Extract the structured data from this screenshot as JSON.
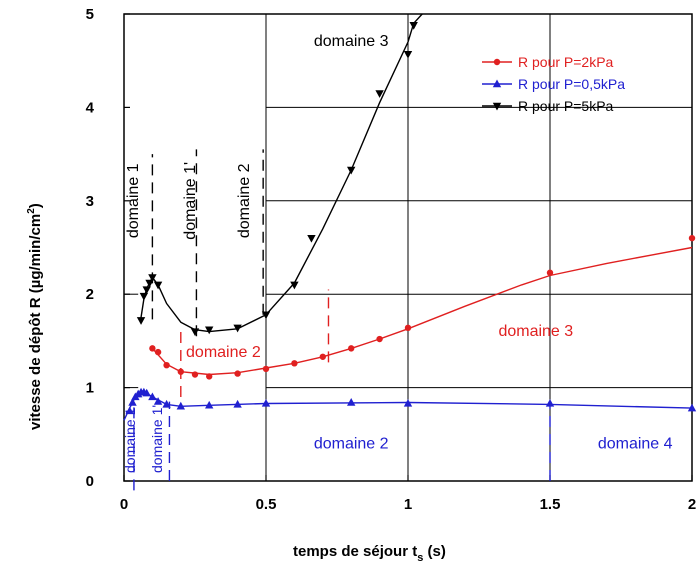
{
  "chart_data": {
    "type": "line",
    "xlabel": "temps de séjour t",
    "xlabel_sub": "s",
    "xlabel_unit": "(s)",
    "ylabel": "vitesse de dépôt R (µg/min/cm",
    "ylabel_sup": "2",
    "ylabel_close": ")",
    "xlim": [
      0,
      2
    ],
    "ylim": [
      0,
      5
    ],
    "xticks": [
      0,
      0.5,
      1,
      1.5,
      2
    ],
    "xtick_labels": [
      "0",
      "0.5",
      "1",
      "1.5",
      "2"
    ],
    "yticks": [
      0,
      1,
      2,
      3,
      4,
      5
    ],
    "ytick_labels": [
      "0",
      "1",
      "2",
      "3",
      "4",
      "5"
    ],
    "grid": "partial",
    "legend_position": "top-right",
    "series": [
      {
        "name": "R pour P=2kPa",
        "color": "#e02020",
        "marker": "circle",
        "points": [
          [
            0.1,
            1.42
          ],
          [
            0.12,
            1.38
          ],
          [
            0.15,
            1.24
          ],
          [
            0.2,
            1.17
          ],
          [
            0.25,
            1.14
          ],
          [
            0.3,
            1.12
          ],
          [
            0.4,
            1.15
          ],
          [
            0.5,
            1.2
          ],
          [
            0.6,
            1.26
          ],
          [
            0.7,
            1.33
          ],
          [
            0.8,
            1.42
          ],
          [
            0.9,
            1.52
          ],
          [
            1.0,
            1.64
          ],
          [
            1.5,
            2.23
          ],
          [
            2.0,
            2.6
          ]
        ],
        "curve": [
          [
            0.1,
            1.42
          ],
          [
            0.15,
            1.25
          ],
          [
            0.2,
            1.17
          ],
          [
            0.3,
            1.14
          ],
          [
            0.4,
            1.16
          ],
          [
            0.5,
            1.21
          ],
          [
            0.6,
            1.26
          ],
          [
            0.7,
            1.33
          ],
          [
            0.8,
            1.42
          ],
          [
            0.9,
            1.52
          ],
          [
            1.0,
            1.63
          ],
          [
            1.2,
            1.87
          ],
          [
            1.4,
            2.1
          ],
          [
            1.5,
            2.2
          ],
          [
            1.7,
            2.33
          ],
          [
            2.0,
            2.5
          ]
        ]
      },
      {
        "name": "R pour P=0,5kPa",
        "color": "#2020d0",
        "marker": "triangle-up",
        "points": [
          [
            0.02,
            0.75
          ],
          [
            0.03,
            0.84
          ],
          [
            0.04,
            0.9
          ],
          [
            0.05,
            0.93
          ],
          [
            0.06,
            0.95
          ],
          [
            0.07,
            0.95
          ],
          [
            0.08,
            0.94
          ],
          [
            0.1,
            0.9
          ],
          [
            0.12,
            0.85
          ],
          [
            0.15,
            0.82
          ],
          [
            0.2,
            0.8
          ],
          [
            0.3,
            0.81
          ],
          [
            0.4,
            0.82
          ],
          [
            0.5,
            0.83
          ],
          [
            0.8,
            0.84
          ],
          [
            1.0,
            0.83
          ],
          [
            1.5,
            0.83
          ],
          [
            2.0,
            0.78
          ]
        ],
        "curve": [
          [
            0.0,
            0.65
          ],
          [
            0.02,
            0.78
          ],
          [
            0.04,
            0.9
          ],
          [
            0.06,
            0.95
          ],
          [
            0.08,
            0.94
          ],
          [
            0.1,
            0.9
          ],
          [
            0.15,
            0.82
          ],
          [
            0.2,
            0.8
          ],
          [
            0.3,
            0.81
          ],
          [
            0.5,
            0.83
          ],
          [
            1.0,
            0.84
          ],
          [
            1.5,
            0.82
          ],
          [
            2.0,
            0.78
          ]
        ]
      },
      {
        "name": "R pour P=5kPa",
        "color": "#000000",
        "marker": "triangle-down",
        "points": [
          [
            0.06,
            1.72
          ],
          [
            0.07,
            1.98
          ],
          [
            0.08,
            2.05
          ],
          [
            0.09,
            2.12
          ],
          [
            0.1,
            2.18
          ],
          [
            0.12,
            2.1
          ],
          [
            0.25,
            1.6
          ],
          [
            0.3,
            1.62
          ],
          [
            0.4,
            1.64
          ],
          [
            0.5,
            1.78
          ],
          [
            0.6,
            2.1
          ],
          [
            0.66,
            2.6
          ],
          [
            0.8,
            3.33
          ],
          [
            0.9,
            4.15
          ],
          [
            1.0,
            4.57
          ],
          [
            1.02,
            4.88
          ]
        ],
        "curve": [
          [
            0.06,
            1.75
          ],
          [
            0.07,
            1.95
          ],
          [
            0.08,
            2.06
          ],
          [
            0.1,
            2.18
          ],
          [
            0.12,
            2.1
          ],
          [
            0.15,
            1.9
          ],
          [
            0.2,
            1.7
          ],
          [
            0.25,
            1.62
          ],
          [
            0.3,
            1.6
          ],
          [
            0.4,
            1.63
          ],
          [
            0.5,
            1.78
          ],
          [
            0.6,
            2.12
          ],
          [
            0.7,
            2.7
          ],
          [
            0.8,
            3.33
          ],
          [
            0.9,
            4.05
          ],
          [
            1.0,
            4.7
          ],
          [
            1.02,
            4.9
          ],
          [
            1.05,
            5.0
          ]
        ]
      }
    ],
    "annotations": [
      {
        "text": "domaine 3",
        "x": 0.8,
        "y": 4.66,
        "color": "#000000",
        "rotate": false,
        "size": "large"
      },
      {
        "text": "domaine 1",
        "x": 0.0,
        "y": 3.0,
        "color": "#000000",
        "rotate": true,
        "size": "large"
      },
      {
        "text": "domaine 1'",
        "x": 0.2,
        "y": 3.0,
        "color": "#000000",
        "rotate": true,
        "size": "large"
      },
      {
        "text": "domaine 2",
        "x": 0.39,
        "y": 3.0,
        "color": "#000000",
        "rotate": true,
        "size": "large"
      },
      {
        "text": "domaine 2",
        "x": 0.35,
        "y": 1.33,
        "color": "#e02020",
        "rotate": false,
        "size": "large"
      },
      {
        "text": "domaine 3",
        "x": 1.45,
        "y": 1.55,
        "color": "#e02020",
        "rotate": false,
        "size": "large"
      },
      {
        "text": "domaine 2",
        "x": 0.8,
        "y": 0.35,
        "color": "#2020d0",
        "rotate": false,
        "size": "large"
      },
      {
        "text": "domaine 4",
        "x": 1.8,
        "y": 0.35,
        "color": "#2020d0",
        "rotate": false,
        "size": "large"
      },
      {
        "text": "domaine 1",
        "x": -0.01,
        "y": 0.0,
        "color": "#2020d0",
        "rotate": true,
        "size": "small"
      },
      {
        "text": "domaine 1'",
        "x": 0.085,
        "y": 0.0,
        "color": "#2020d0",
        "rotate": true,
        "size": "small"
      }
    ],
    "dividers": [
      {
        "x": 0.1,
        "y1": 1.73,
        "y2": 3.5,
        "color": "#000000"
      },
      {
        "x": 0.255,
        "y1": 1.55,
        "y2": 3.55,
        "color": "#000000"
      },
      {
        "x": 0.49,
        "y1": 1.78,
        "y2": 3.55,
        "color": "#000000"
      },
      {
        "x": 0.2,
        "y1": 0.9,
        "y2": 1.6,
        "color": "#e02020"
      },
      {
        "x": 0.72,
        "y1": 1.27,
        "y2": 2.05,
        "color": "#e02020"
      },
      {
        "x": 0.035,
        "y1": -0.1,
        "y2": 0.85,
        "color": "#2020d0"
      },
      {
        "x": 0.16,
        "y1": 0.0,
        "y2": 0.85,
        "color": "#2020d0"
      },
      {
        "x": 1.5,
        "y1": 0.0,
        "y2": 0.85,
        "color": "#2020d0"
      }
    ]
  }
}
